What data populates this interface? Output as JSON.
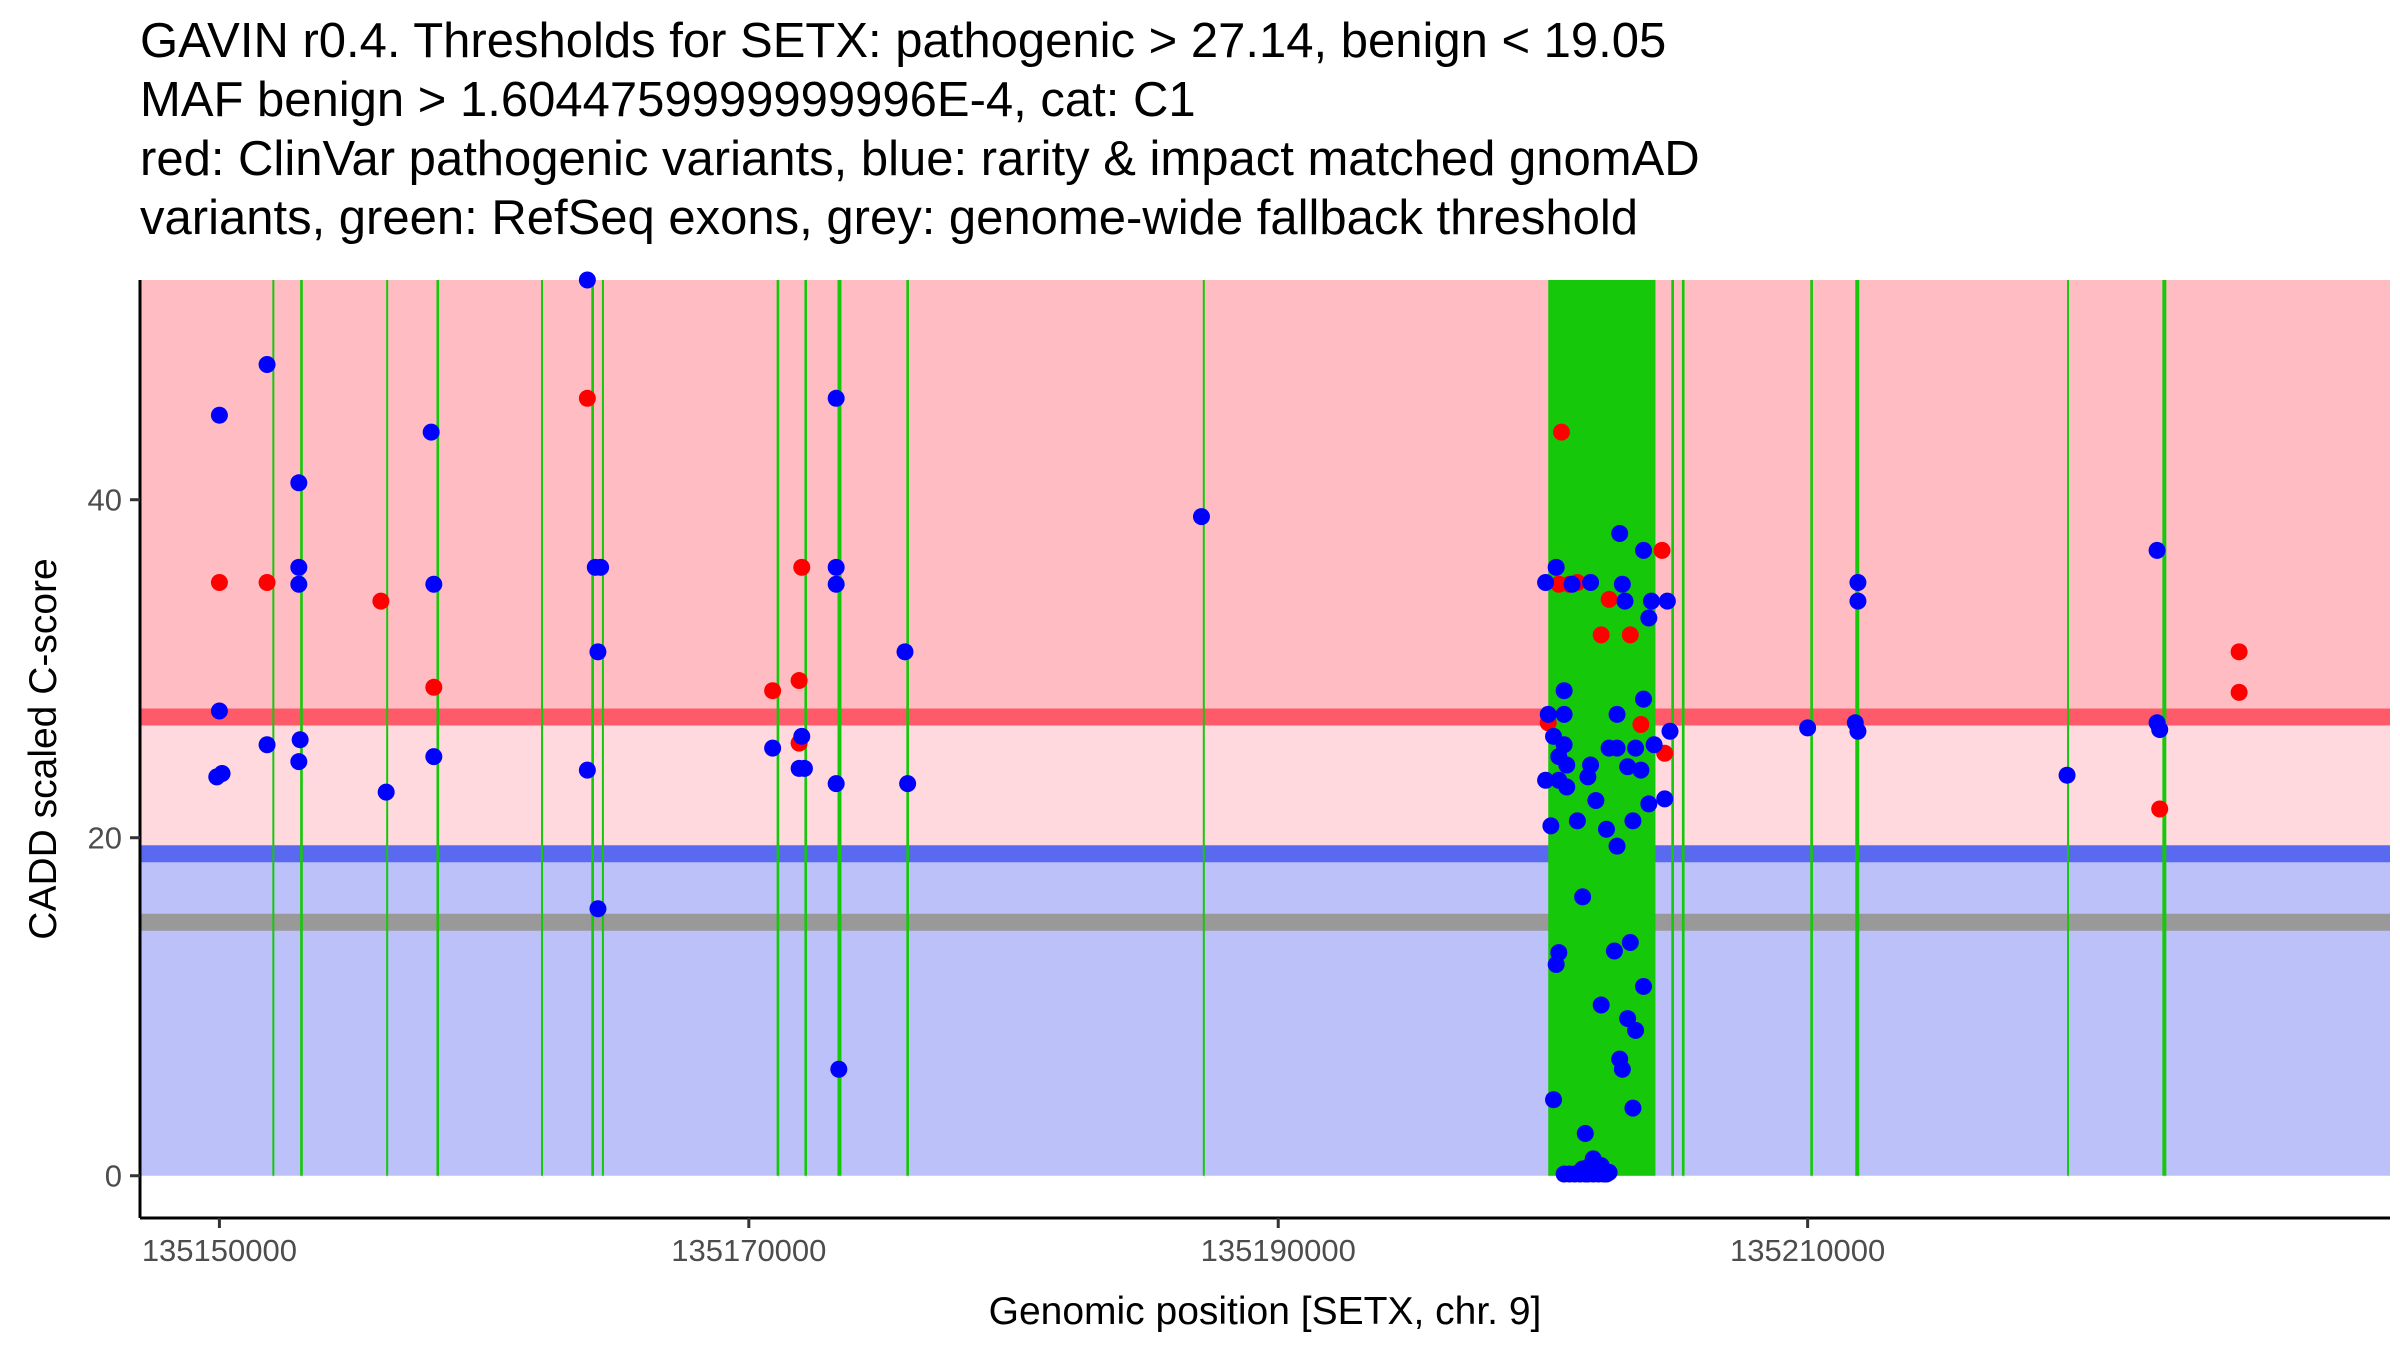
{
  "title_lines": [
    "GAVIN r0.4. Thresholds for SETX: pathogenic > 27.14, benign < 19.05",
    "MAF benign > 1.6044759999999996E-4, cat: C1",
    "red: ClinVar pathogenic variants, blue: rarity & impact matched gnomAD",
    "variants, green: RefSeq exons, grey: genome-wide fallback threshold"
  ],
  "chart_data": {
    "type": "scatter",
    "xlabel": "Genomic position [SETX, chr. 9]",
    "ylabel": "CADD scaled C-score",
    "xlim": [
      135147000,
      135232000
    ],
    "ylim": [
      -2.5,
      53
    ],
    "x_ticks": [
      {
        "value": 135150000,
        "label": "135150000"
      },
      {
        "value": 135170000,
        "label": "135170000"
      },
      {
        "value": 135190000,
        "label": "135190000"
      },
      {
        "value": 135210000,
        "label": "135210000"
      }
    ],
    "y_ticks": [
      {
        "value": 0,
        "label": "0"
      },
      {
        "value": 20,
        "label": "20"
      },
      {
        "value": 40,
        "label": "40"
      }
    ],
    "thresholds": {
      "pathogenic": 27.14,
      "benign": 19.05,
      "genome_wide_fallback": 15
    },
    "regions": [
      {
        "name": "pathogenic-region",
        "y_from": 27.14,
        "y_to": 53,
        "color": "#ffbdc3"
      },
      {
        "name": "intermediate-region",
        "y_from": 19.05,
        "y_to": 27.14,
        "color": "#ffd9de"
      },
      {
        "name": "benign-region",
        "y_from": 0,
        "y_to": 19.05,
        "color": "#bcc1fa"
      }
    ],
    "threshold_lines": [
      {
        "name": "pathogenic-threshold-line",
        "y": 27.14,
        "color": "#ff5a6a"
      },
      {
        "name": "benign-threshold-line",
        "y": 19.05,
        "color": "#5a6af0"
      },
      {
        "name": "fallback-threshold-line",
        "y": 15,
        "color": "#999999"
      }
    ],
    "exons": [
      {
        "start": 135152000,
        "end": 135152050
      },
      {
        "start": 135153050,
        "end": 135153150
      },
      {
        "start": 135156300,
        "end": 135156350
      },
      {
        "start": 135158200,
        "end": 135158300
      },
      {
        "start": 135162150,
        "end": 135162200
      },
      {
        "start": 135164050,
        "end": 135164150
      },
      {
        "start": 135164450,
        "end": 135164500
      },
      {
        "start": 135171050,
        "end": 135171150
      },
      {
        "start": 135172100,
        "end": 135172200
      },
      {
        "start": 135173350,
        "end": 135173500
      },
      {
        "start": 135175950,
        "end": 135176050
      },
      {
        "start": 135187150,
        "end": 135187200
      },
      {
        "start": 135200200,
        "end": 135204250
      },
      {
        "start": 135204850,
        "end": 135204950
      },
      {
        "start": 135205250,
        "end": 135205350
      },
      {
        "start": 135210100,
        "end": 135210200
      },
      {
        "start": 135211800,
        "end": 135211950
      },
      {
        "start": 135219800,
        "end": 135219850
      },
      {
        "start": 135223400,
        "end": 135223550
      }
    ],
    "series": [
      {
        "name": "ClinVar pathogenic variants",
        "color": "#ff0000",
        "points": [
          [
            135150000,
            35.1
          ],
          [
            135151800,
            35.1
          ],
          [
            135156100,
            34.0
          ],
          [
            135158100,
            28.9
          ],
          [
            135163900,
            46.0
          ],
          [
            135170900,
            28.7
          ],
          [
            135171900,
            29.3
          ],
          [
            135172000,
            36.0
          ],
          [
            135171900,
            25.6
          ],
          [
            135200700,
            44.0
          ],
          [
            135200200,
            26.8
          ],
          [
            135200600,
            35.0
          ],
          [
            135201300,
            35.1
          ],
          [
            135201000,
            35.0
          ],
          [
            135202200,
            32.0
          ],
          [
            135202500,
            34.1
          ],
          [
            135203300,
            32.0
          ],
          [
            135203700,
            26.7
          ],
          [
            135204500,
            37.0
          ],
          [
            135204600,
            25.0
          ],
          [
            135223300,
            21.7
          ],
          [
            135226300,
            31.0
          ],
          [
            135226300,
            28.6
          ]
        ]
      },
      {
        "name": "rarity & impact matched gnomAD variants",
        "color": "#0000ff",
        "points": [
          [
            135150000,
            45.0
          ],
          [
            135150000,
            27.5
          ],
          [
            135149900,
            23.6
          ],
          [
            135150100,
            23.8
          ],
          [
            135151800,
            48.0
          ],
          [
            135151800,
            25.5
          ],
          [
            135153000,
            41.0
          ],
          [
            135153000,
            36.0
          ],
          [
            135153000,
            35.0
          ],
          [
            135153050,
            25.8
          ],
          [
            135153000,
            24.5
          ],
          [
            135156300,
            22.7
          ],
          [
            135158000,
            44.0
          ],
          [
            135158100,
            35.0
          ],
          [
            135158100,
            24.8
          ],
          [
            135163900,
            53.0
          ],
          [
            135164200,
            36.0
          ],
          [
            135164400,
            36.0
          ],
          [
            135164300,
            31.0
          ],
          [
            135163900,
            24.0
          ],
          [
            135164300,
            15.8
          ],
          [
            135170900,
            25.3
          ],
          [
            135172000,
            26.0
          ],
          [
            135171900,
            24.1
          ],
          [
            135172100,
            24.1
          ],
          [
            135173300,
            46.0
          ],
          [
            135173300,
            36.0
          ],
          [
            135173300,
            35.0
          ],
          [
            135173300,
            23.2
          ],
          [
            135173400,
            6.3
          ],
          [
            135175900,
            31.0
          ],
          [
            135176000,
            23.2
          ],
          [
            135187100,
            39.0
          ],
          [
            135200100,
            35.1
          ],
          [
            135200200,
            27.3
          ],
          [
            135200100,
            23.4
          ],
          [
            135200300,
            20.7
          ],
          [
            135200400,
            4.5
          ],
          [
            135200500,
            36.0
          ],
          [
            135200400,
            26.0
          ],
          [
            135200600,
            24.8
          ],
          [
            135200600,
            23.4
          ],
          [
            135200800,
            28.7
          ],
          [
            135200800,
            27.3
          ],
          [
            135200800,
            25.5
          ],
          [
            135200900,
            24.3
          ],
          [
            135200900,
            23.0
          ],
          [
            135200500,
            12.5
          ],
          [
            135200600,
            13.2
          ],
          [
            135201100,
            35.0
          ],
          [
            135201300,
            21.0
          ],
          [
            135201500,
            16.5
          ],
          [
            135201800,
            35.1
          ],
          [
            135201800,
            24.3
          ],
          [
            135201700,
            23.6
          ],
          [
            135202000,
            22.2
          ],
          [
            135201600,
            2.5
          ],
          [
            135202200,
            10.1
          ],
          [
            135202400,
            20.5
          ],
          [
            135202500,
            25.3
          ],
          [
            135202800,
            27.3
          ],
          [
            135202800,
            25.3
          ],
          [
            135202800,
            19.5
          ],
          [
            135202700,
            13.3
          ],
          [
            135202900,
            38.0
          ],
          [
            135203000,
            35.0
          ],
          [
            135203100,
            34.0
          ],
          [
            135203200,
            24.2
          ],
          [
            135203400,
            21.0
          ],
          [
            135203300,
            13.8
          ],
          [
            135203200,
            9.3
          ],
          [
            135202900,
            6.9
          ],
          [
            135203000,
            6.3
          ],
          [
            135203500,
            8.6
          ],
          [
            135203400,
            4.0
          ],
          [
            135203500,
            25.3
          ],
          [
            135203800,
            37.0
          ],
          [
            135203800,
            28.2
          ],
          [
            135203700,
            24.0
          ],
          [
            135203800,
            11.2
          ],
          [
            135204000,
            33.0
          ],
          [
            135204100,
            34.0
          ],
          [
            135204000,
            22.0
          ],
          [
            135204200,
            25.5
          ],
          [
            135204600,
            22.3
          ],
          [
            135204700,
            34.0
          ],
          [
            135204800,
            26.3
          ],
          [
            135210000,
            26.5
          ],
          [
            135211900,
            35.1
          ],
          [
            135211900,
            34.0
          ],
          [
            135211800,
            26.8
          ],
          [
            135211900,
            26.3
          ],
          [
            135219800,
            23.7
          ],
          [
            135223200,
            37.0
          ],
          [
            135223200,
            26.8
          ],
          [
            135223300,
            26.4
          ],
          [
            135200800,
            0.1
          ],
          [
            135201000,
            0.1
          ],
          [
            135201200,
            0.1
          ],
          [
            135201400,
            0.1
          ],
          [
            135201700,
            0.1
          ],
          [
            135201900,
            0.1
          ],
          [
            135202100,
            0.1
          ],
          [
            135202400,
            0.1
          ],
          [
            135202500,
            0.2
          ],
          [
            135201500,
            0.4
          ],
          [
            135201900,
            1.0
          ],
          [
            135202200,
            0.6
          ],
          [
            135202000,
            0.3
          ],
          [
            135201700,
            0.5
          ],
          [
            135201600,
            0.1
          ],
          [
            135202300,
            0.1
          ]
        ]
      }
    ]
  }
}
